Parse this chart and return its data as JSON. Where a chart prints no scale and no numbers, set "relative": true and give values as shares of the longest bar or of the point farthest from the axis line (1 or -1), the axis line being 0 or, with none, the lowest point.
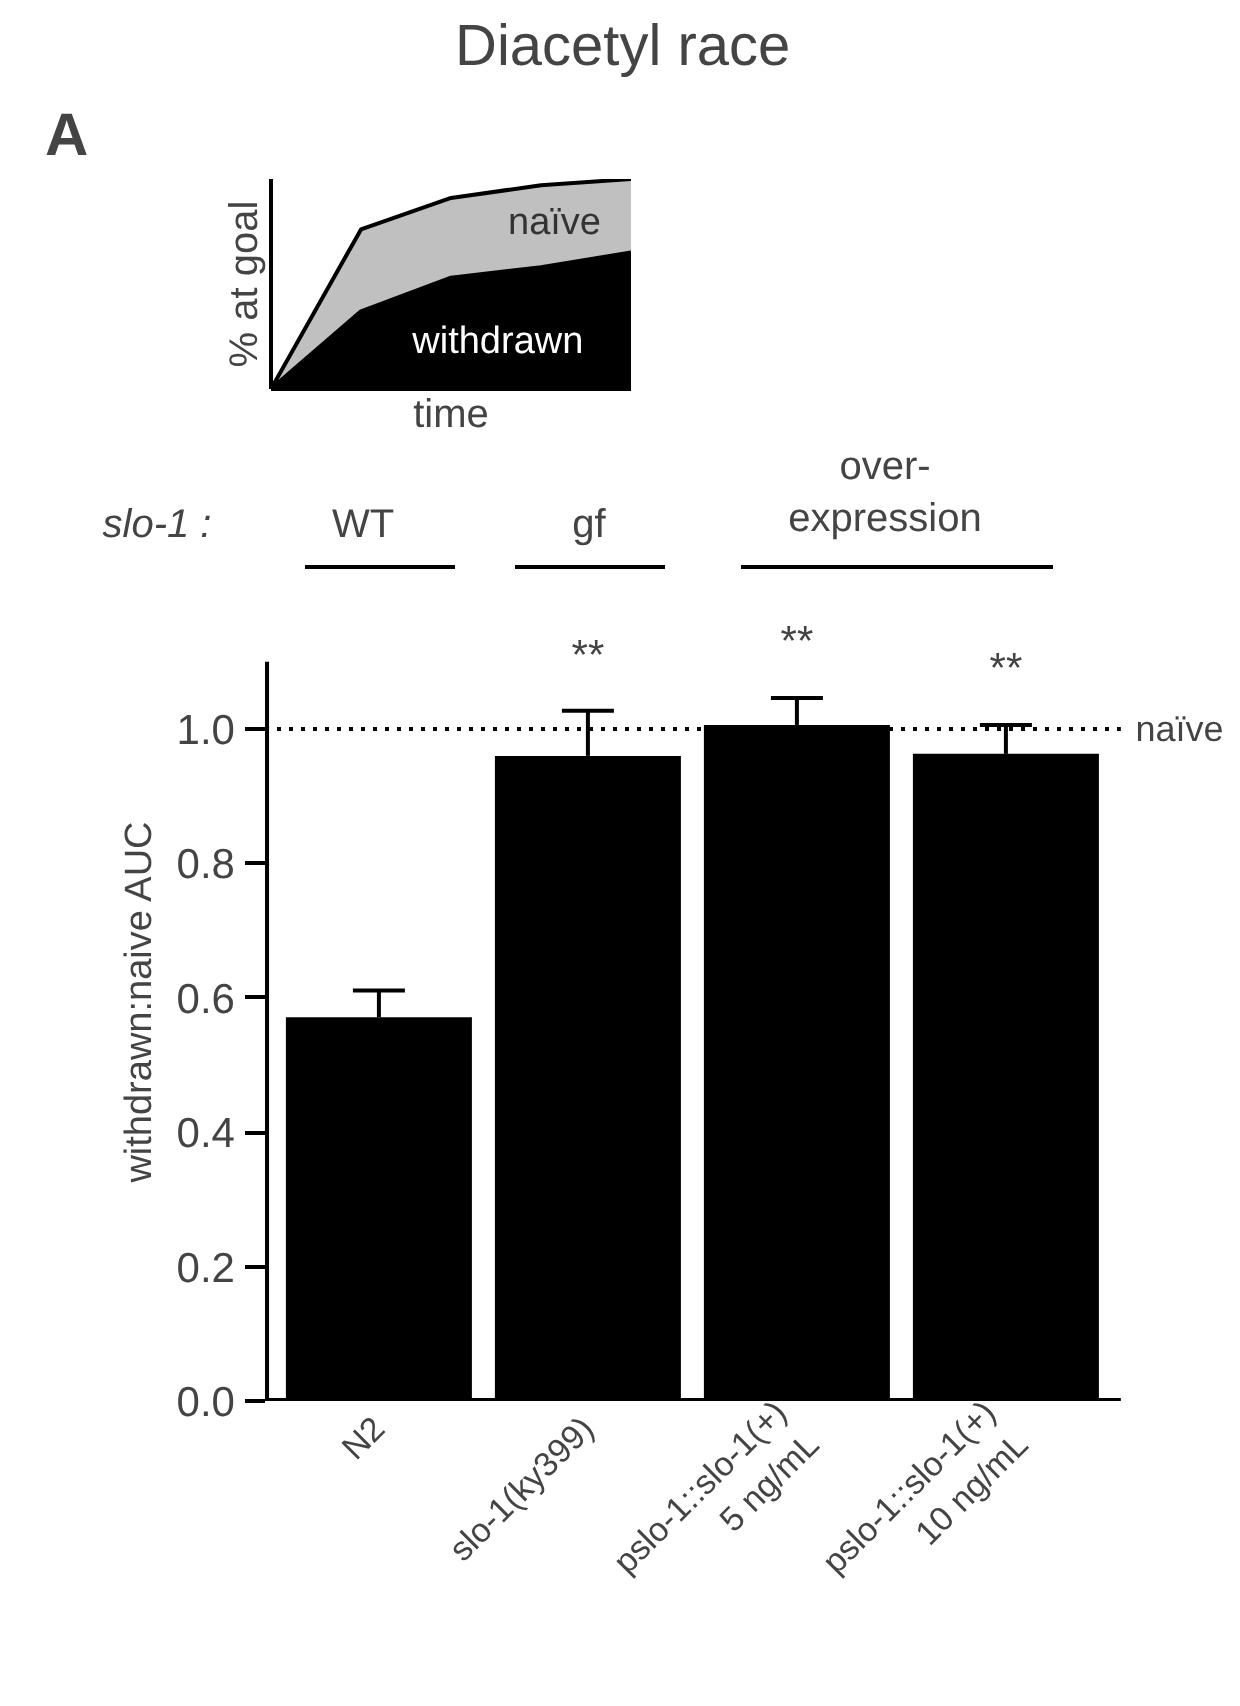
{
  "chart_data": [
    {
      "type": "area",
      "title": "Diacetyl race",
      "xlabel": "time",
      "ylabel": "% at goal",
      "relative": true,
      "annotations": [
        "A"
      ],
      "categories": [
        null,
        null,
        null,
        null,
        null
      ],
      "series": [
        {
          "name": "naïve",
          "color": "#c0c0c0",
          "values": [
            0,
            0.76,
            0.91,
            0.97,
            1
          ]
        },
        {
          "name": "withdrawn",
          "color": "#000000",
          "values": [
            0,
            0.37,
            0.53,
            0.58,
            0.65
          ]
        }
      ]
    },
    {
      "type": "bar",
      "ylabel": "withdrawn:naive AUC",
      "categories": [
        "N2",
        "slo-1(ky399)",
        "pslo-1::slo-1(+)\n5 ng/mL",
        "pslo-1::slo-1(+)\n10 ng/mL"
      ],
      "values": [
        0.571,
        0.96,
        1.006,
        0.963
      ],
      "color": "#000000",
      "errors": [
        0.04,
        0.067,
        0.04,
        0.043
      ],
      "ylim": [
        0,
        1.1
      ],
      "yticks": [
        {
          "value": 0,
          "label": "0.0"
        },
        0.2,
        0.4,
        0.6,
        0.8,
        {
          "value": 1,
          "label": "1.0"
        }
      ],
      "ref_lines": [
        {
          "axis": "y",
          "value": 1.0,
          "label": "naïve",
          "line_style": "dotted",
          "color": "#000000"
        }
      ],
      "annotations": [
        "**",
        "**",
        "**",
        "slo-1 :",
        "WT",
        "gf",
        "over-\nexpression"
      ]
    }
  ]
}
